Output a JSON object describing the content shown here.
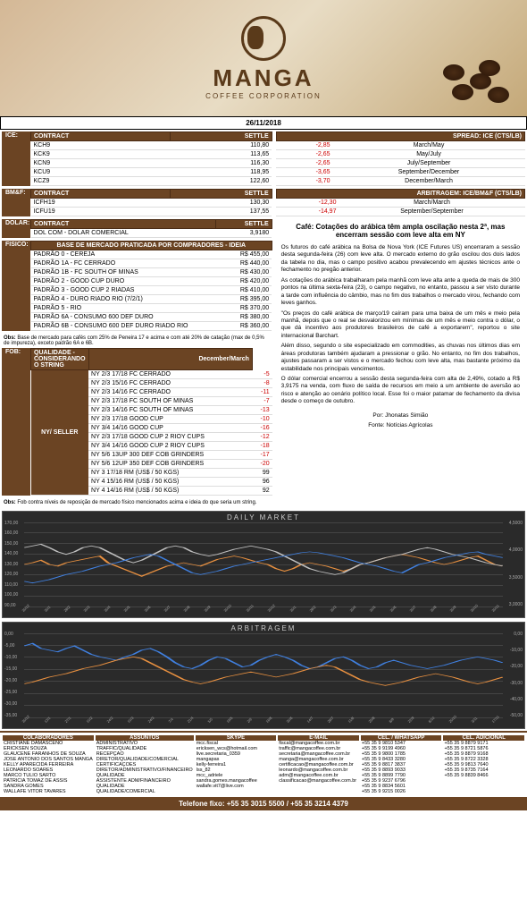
{
  "logo": {
    "name": "MANGA",
    "sub": "COFFEE CORPORATION"
  },
  "date": "26/11/2018",
  "ice": {
    "label": "ICE:",
    "cols": [
      "CONTRACT",
      "SETTLE"
    ],
    "rows": [
      [
        "KCH9",
        "110,80"
      ],
      [
        "KCK9",
        "113,65"
      ],
      [
        "KCN9",
        "116,30"
      ],
      [
        "KCU9",
        "118,95"
      ],
      [
        "KCZ9",
        "122,60"
      ]
    ]
  },
  "bmf": {
    "label": "BM&F:",
    "cols": [
      "CONTRACT",
      "SETTLE"
    ],
    "rows": [
      [
        "ICFH19",
        "130,30"
      ],
      [
        "ICFU19",
        "137,55"
      ]
    ]
  },
  "dolar": {
    "label": "DOLAR:",
    "cols": [
      "CONTRACT",
      "SETTLE"
    ],
    "rows": [
      [
        "DOL COM - DOLAR COMERCIAL",
        "3,9180"
      ]
    ]
  },
  "spread": {
    "title": "SPREAD: ICE (CTS/LB)",
    "rows": [
      [
        "-2,85",
        "March/May"
      ],
      [
        "-2,65",
        "May/July"
      ],
      [
        "-2,65",
        "July/September"
      ],
      [
        "-3,65",
        "September/December"
      ],
      [
        "-3,70",
        "December/March"
      ]
    ]
  },
  "arb_table": {
    "title": "ARBITRAGEM: ICE/BM&F (CTS/LB)",
    "rows": [
      [
        "-12,30",
        "March/March"
      ],
      [
        "-14,97",
        "September/September"
      ]
    ]
  },
  "fisico": {
    "label": "FISICO:",
    "title": "BASE DE MERCADO PRATICADA POR COMPRADORES - IDEIA",
    "rows": [
      [
        "PADRÃO 0 - CEREJA",
        "R$ 455,00"
      ],
      [
        "PADRÃO 1A - FC CERRADO",
        "R$ 440,00"
      ],
      [
        "PADRÃO 1B - FC SOUTH OF MINAS",
        "R$ 430,00"
      ],
      [
        "PADRÃO 2 - GOOD CUP DURO",
        "R$ 420,00"
      ],
      [
        "PADRÃO 3 - GOOD CUP 2 RIADAS",
        "R$ 410,00"
      ],
      [
        "PADRÃO 4 - DURO RIADO RIO (7/2/1)",
        "R$ 395,00"
      ],
      [
        "PADRÃO 5 - RIO",
        "R$ 370,00"
      ],
      [
        "PADRÃO 6A - CONSUMO 600 DEF DURO",
        "R$ 380,00"
      ],
      [
        "PADRÃO 6B - CONSUMO 600 DEF DURO RIADO RIO",
        "R$ 360,00"
      ]
    ],
    "obs_label": "Obs:",
    "obs": "Base de mercado para cafés com 25% de Peneira 17 e acima e com até 20% de catação (max de 0,5% de impureza), exceto padrão 6A e 6B."
  },
  "fob": {
    "label": "FOB:",
    "title": "QUALIDADE - CONSIDERANDO O STRING",
    "col2": "December/March",
    "sub": "NY/ SELLER",
    "rows": [
      [
        "NY 2/3 17/18 FC CERRADO",
        "-5",
        true
      ],
      [
        "NY 2/3 15/16 FC CERRADO",
        "-8",
        true
      ],
      [
        "NY 2/3 14/16 FC CERRADO",
        "-11",
        true
      ],
      [
        "NY 2/3 17/18 FC SOUTH OF MINAS",
        "-7",
        true
      ],
      [
        "NY 2/3 14/16 FC SOUTH OF MINAS",
        "-13",
        true
      ],
      [
        "NY 2/3 17/18 GOOD CUP",
        "-10",
        true
      ],
      [
        "NY 3/4 14/16 GOOD CUP",
        "-16",
        true
      ],
      [
        "NY 2/3 17/18 GOOD CUP 2 RIOY CUPS",
        "-12",
        true
      ],
      [
        "NY 3/4 14/16 GOOD CUP 2 RIOY CUPS",
        "-18",
        true
      ],
      [
        "NY 5/6 13UP 300 DEF COB GRINDERS",
        "-17",
        true
      ],
      [
        "NY 5/6 12UP 350 DEF COB GRINDERS",
        "-20",
        true
      ],
      [
        "NY 3 17/18 RM (US$ / 50 KGS)",
        "99",
        false
      ],
      [
        "NY 4 15/16 RM (US$ / 50 KGS)",
        "96",
        false
      ],
      [
        "NY 4 14/16 RM (US$ / 50 KGS)",
        "92",
        false
      ]
    ],
    "obs_label": "Obs:",
    "obs": "Fob contra níveis de reposição de mercado físico mencionados acima e ideia do que seria um string."
  },
  "article": {
    "title": "Café: Cotações do arábica têm ampla oscilação nesta 2ª, mas encerram sessão com leve alta em NY",
    "paras": [
      "Os futuros do café arábica na Bolsa de Nova York (ICE Futures US) encerraram a sessão desta segunda-feira (26) com leve alta. O mercado externo do grão oscilou dos dois lados da tabela no dia, mas o campo positivo acabou prevalecendo em ajustes técnicos ante o fechamento no pregão anterior.",
      "As cotações do arábica trabalharam pela manhã com leve alta ante a queda de mais de 300 pontos na última sexta-feira (23), o campo negativo, no entanto, passou a ser visto durante a tarde com influência do câmbio, mas no fim dos trabalhos o mercado virou, fechando com leves ganhos.",
      "\"Os preços do café arábica de março/19 caíram para uma baixa de um mês e meio pela manhã, depois que o real se desvalorizou em mínimas de um mês e meio contra o dólar, o que dá incentivo aos produtores brasileiros de café a exportarem\", reportou o site internacional Barchart.",
      "Além disso, segundo o site especializado em commodities, as chuvas nos últimos dias em áreas produtoras também ajudaram a pressionar o grão. No entanto, no fim dos trabalhos, ajustes passaram a ser vistos e o mercado fechou com leve alta, mas bastante próximo da estabilidade nos principais vencimentos.",
      "O dólar comercial encerrou a sessão desta segunda-feira com alta de 2,49%, cotado a R$ 3,9175 na venda, com fluxo de saída de recursos em meio a um ambiente de aversão ao risco e atenção ao cenário político local. Esse foi o maior patamar de fechamento da divisa desde o começo de outubro."
    ],
    "author": "Por: Jhonatas Simião",
    "source": "Fonte: Notícias Agrícolas"
  },
  "chart1": {
    "title": "DAILY MARKET",
    "legend": [
      "ICE NY - KCH9",
      "BM&F SP - ICFU9",
      "DOLAR COM (EIXO SECUNDÁRIO)"
    ],
    "left_ticks": [
      "170,00",
      "160,00",
      "150,00",
      "140,00",
      "130,00",
      "120,00",
      "110,00",
      "100,00",
      "90,00"
    ],
    "right_ticks": [
      "4,5000",
      "4,0000",
      "3,5000",
      "3,0000"
    ],
    "x_ticks": [
      "30/12",
      "30/1",
      "28/2",
      "30/3",
      "30/4",
      "30/5",
      "30/6",
      "30/7",
      "30/8",
      "30/9",
      "30/10",
      "30/11",
      "30/12",
      "30/1",
      "28/2",
      "30/3",
      "30/4",
      "30/5",
      "30/6",
      "30/7",
      "30/8",
      "30/9",
      "30/10",
      "30/11"
    ],
    "colors": {
      "a": "#e89040",
      "b": "#c0c0c0",
      "c": "#4080e0",
      "bg": "#2a2a2a",
      "grid": "#444444"
    },
    "series_a": [
      50,
      48,
      45,
      50,
      52,
      48,
      46,
      44,
      42,
      40,
      48,
      52,
      56,
      60,
      64,
      60,
      56,
      52,
      50,
      48,
      50,
      52,
      48,
      44,
      42,
      40,
      42,
      45,
      48,
      50,
      55,
      58,
      55,
      50,
      48,
      50,
      52,
      55,
      58,
      55,
      50,
      48,
      45,
      42,
      40,
      38,
      40,
      42,
      45,
      48,
      50,
      48,
      45,
      42,
      40,
      45,
      50,
      52
    ],
    "series_b": [
      30,
      28,
      26,
      30,
      35,
      38,
      35,
      30,
      28,
      30,
      35,
      40,
      45,
      48,
      45,
      40,
      35,
      30,
      28,
      30,
      35,
      38,
      40,
      38,
      35,
      32,
      30,
      28,
      30,
      32,
      35,
      40,
      45,
      50,
      55,
      58,
      60,
      62,
      60,
      55,
      50,
      48,
      45,
      42,
      40,
      38,
      35,
      32,
      30,
      32,
      35,
      38,
      40,
      42,
      45,
      48,
      50,
      52
    ],
    "series_c": [
      70,
      72,
      70,
      68,
      65,
      62,
      60,
      58,
      55,
      52,
      50,
      48,
      45,
      42,
      40,
      38,
      40,
      45,
      50,
      55,
      60,
      62,
      60,
      58,
      55,
      52,
      50,
      48,
      46,
      44,
      42,
      40,
      38,
      36,
      35,
      36,
      38,
      40,
      42,
      45,
      48,
      50,
      52,
      55,
      58,
      60,
      55,
      50,
      48,
      45,
      42,
      40,
      38,
      36,
      35,
      38,
      40,
      42
    ]
  },
  "chart2": {
    "title": "ARBITRAGEM",
    "legend": [
      "ARB - BM&F/ICE",
      "ARB - LIFFE/ICE"
    ],
    "left_ticks": [
      "0,00",
      "-5,00",
      "-10,00",
      "-15,00",
      "-20,00",
      "-25,00",
      "-30,00",
      "-35,00"
    ],
    "right_ticks": [
      "0,00",
      "-10,00",
      "-20,00",
      "-30,00",
      "-40,00",
      "-50,00"
    ],
    "x_ticks": [
      "30/12",
      "13/1",
      "27/1",
      "10/2",
      "24/2",
      "10/3",
      "24/3",
      "7/4",
      "21/4",
      "5/5",
      "19/5",
      "2/6",
      "16/6",
      "30/6",
      "14/7",
      "28/7",
      "11/8",
      "25/8",
      "8/9",
      "22/9",
      "6/10",
      "20/10",
      "3/11",
      "17/11"
    ],
    "colors": {
      "a": "#4080e0",
      "b": "#e89040",
      "bg": "#2a2a2a",
      "grid": "#444444"
    },
    "series_a": [
      15,
      12,
      18,
      20,
      22,
      18,
      15,
      20,
      25,
      28,
      30,
      32,
      28,
      25,
      20,
      18,
      22,
      28,
      35,
      40,
      42,
      38,
      32,
      28,
      30,
      35,
      40,
      38,
      32,
      28,
      25,
      28,
      32,
      38,
      42,
      40,
      35,
      30,
      28,
      32,
      38,
      42,
      40,
      35,
      32,
      35,
      38,
      40,
      42,
      40,
      38,
      35,
      32,
      30,
      28,
      30,
      32,
      35
    ],
    "series_b": [
      60,
      58,
      55,
      52,
      50,
      48,
      45,
      42,
      40,
      38,
      35,
      32,
      30,
      28,
      30,
      35,
      40,
      45,
      50,
      55,
      58,
      60,
      58,
      55,
      52,
      50,
      48,
      46,
      48,
      50,
      52,
      50,
      48,
      45,
      42,
      40,
      38,
      40,
      45,
      50,
      55,
      58,
      60,
      62,
      60,
      58,
      55,
      52,
      50,
      48,
      50,
      52,
      55,
      58,
      60,
      58,
      55,
      52
    ]
  },
  "footer": {
    "col_heads": [
      "COLABORADORES",
      "ASSUNTOS",
      "SKYPE",
      "E-MAIL",
      "CEL. / WHATSAPP",
      "CEL. ADICIONAL"
    ],
    "rows": [
      [
        "CRISTIANE DAMASCENO",
        "ADMINISTRATIVO",
        "mcc.fiscal",
        "fiscal@mangacoffee.com.br",
        "+55 35 9 9810 5347",
        ""
      ],
      [
        "ERICKSEN SOUZA",
        "TRAFFIC/QUALIDADE",
        "ericksen_wcs@hotmail.com",
        "traffic@mangacoffee.com.br",
        "+55 35 9 9199 4960",
        "+55 35 9 8879 9171"
      ],
      [
        "GLAUCENE FARANHOS DE SOUZA",
        "RECEPÇÃO",
        "live.secretaria_0359",
        "secretaria@mangacoffee.com.br",
        "+55 35 9 9800 1785",
        "+55 35 9 8721 5876"
      ],
      [
        "JOSÉ ANTONIO DOS SANTOS MANGA",
        "DIRETOR/QUALIDADE/COMERCIAL",
        "mangapas",
        "manga@mangacoffee.com.br",
        "+55 35 9 8433 3280",
        "+55 35 9 8879 9168"
      ],
      [
        "KELLY APARECIDA FERREIRA",
        "CERTIFICAÇÕES",
        "kelly-ferreira1",
        "certificacao@mangacoffee.com.br",
        "+55 35 9 8817 3837",
        ""
      ],
      [
        "LEONARDO SOARES",
        "DIRETOR/ADMINISTRATIVO/FINANCEIRO",
        "lss_82",
        "leonardo@mangacoffee.com.br",
        "+55 35 9 8893 9033",
        "+55 35 9 8722 3328"
      ],
      [
        "MARCO TULIO SARTO",
        "QUALIDADE",
        "",
        "",
        "+55 35 9 8899 7790",
        ""
      ],
      [
        "PATRÍCIA TOMAZ DE ASSIS",
        "ASSISTENTE ADM/FINANCEIRO",
        "mcc_adriele",
        "adm@mangacoffee.com.br",
        "+55 35 9 9237 6796",
        "+55 35 9 9813 7640"
      ],
      [
        "SANDRA GOMES",
        "QUALIDADE",
        "sandra.gomes.mangacoffee",
        "",
        "+55 35 9 8834 5601",
        "+55 35 9 8735 7164"
      ],
      [
        "WALLAFE VITOR TAVARES",
        "QUALIDADE/COMERCIAL",
        "wallafe.vit7@live.com",
        "classificacao@mangacoffee.com.br",
        "+55 35 9 9215 0026",
        "+55 35 9 8839 8466"
      ]
    ],
    "phone": "Telefone fixo: +55 35 3015 5500 / +55 35 3214 4379"
  }
}
